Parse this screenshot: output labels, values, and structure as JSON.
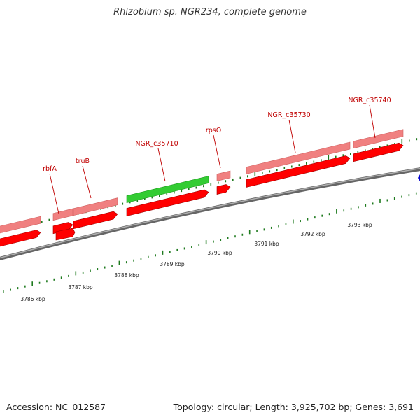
{
  "title": "Rhizobium sp. NGR234, complete genome",
  "footer": {
    "accession": "Accession: NC_012587",
    "summary": "Topology: circular; Length: 3,925,702 bp; Genes: 3,691"
  },
  "colors": {
    "cds_forward": "#ff0000",
    "gene_light": "#f08080",
    "gene_highlight": "#33cc33",
    "tick_green": "#1e7a1e",
    "backbone": "#888888",
    "label_red": "#c00000",
    "marker_blue": "#0000cc"
  },
  "gene_labels": [
    "rbfA",
    "truB",
    "NGR_c35710",
    "rpsO",
    "NGR_c35730",
    "NGR_c35740"
  ],
  "kbp_labels": [
    "3786 kbp",
    "3787 kbp",
    "3788 kbp",
    "3789 kbp",
    "3790 kbp",
    "3791 kbp",
    "3792 kbp",
    "3793 kbp"
  ]
}
